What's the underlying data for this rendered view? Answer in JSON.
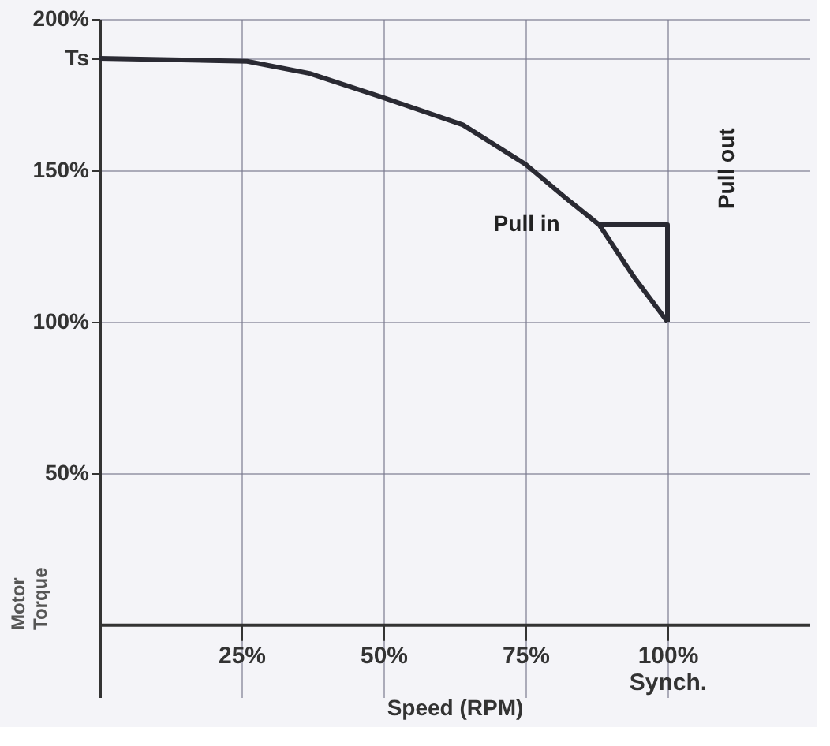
{
  "chart_data": {
    "type": "line",
    "xlabel": "Speed (RPM)",
    "ylabel": "Motor Torque",
    "series": [
      {
        "color": "#2a2a33",
        "x": [
          0,
          26,
          37,
          50,
          64,
          75,
          82,
          88,
          94,
          100
        ],
        "values": [
          187,
          186,
          182,
          174,
          165,
          152,
          141,
          132,
          115,
          100
        ]
      },
      {
        "color": "#2a2a33",
        "x": [
          100,
          100,
          88
        ],
        "values": [
          100,
          132,
          132
        ]
      }
    ],
    "xlim": [
      0,
      125
    ],
    "ylim": [
      -24,
      200
    ],
    "xticks": [
      {
        "value": 25,
        "label": "25%"
      },
      {
        "value": 50,
        "label": "50%"
      },
      {
        "value": 75,
        "label": "75%"
      },
      {
        "value": 100,
        "label": "100%\nSynch."
      }
    ],
    "yticks": [
      {
        "value": 50,
        "label": "50%"
      },
      {
        "value": 100,
        "label": "100%"
      },
      {
        "value": 150,
        "label": "150%"
      },
      {
        "value": 187,
        "label": "Ts"
      },
      {
        "value": 200,
        "label": "200%"
      }
    ],
    "annotations": [
      {
        "text": "Pull in",
        "x": 88,
        "y": 132
      },
      {
        "text": "Pull out",
        "x": 100,
        "y": 132
      }
    ],
    "grid": true,
    "marker": "none",
    "line_style": "solid",
    "legend": false
  }
}
